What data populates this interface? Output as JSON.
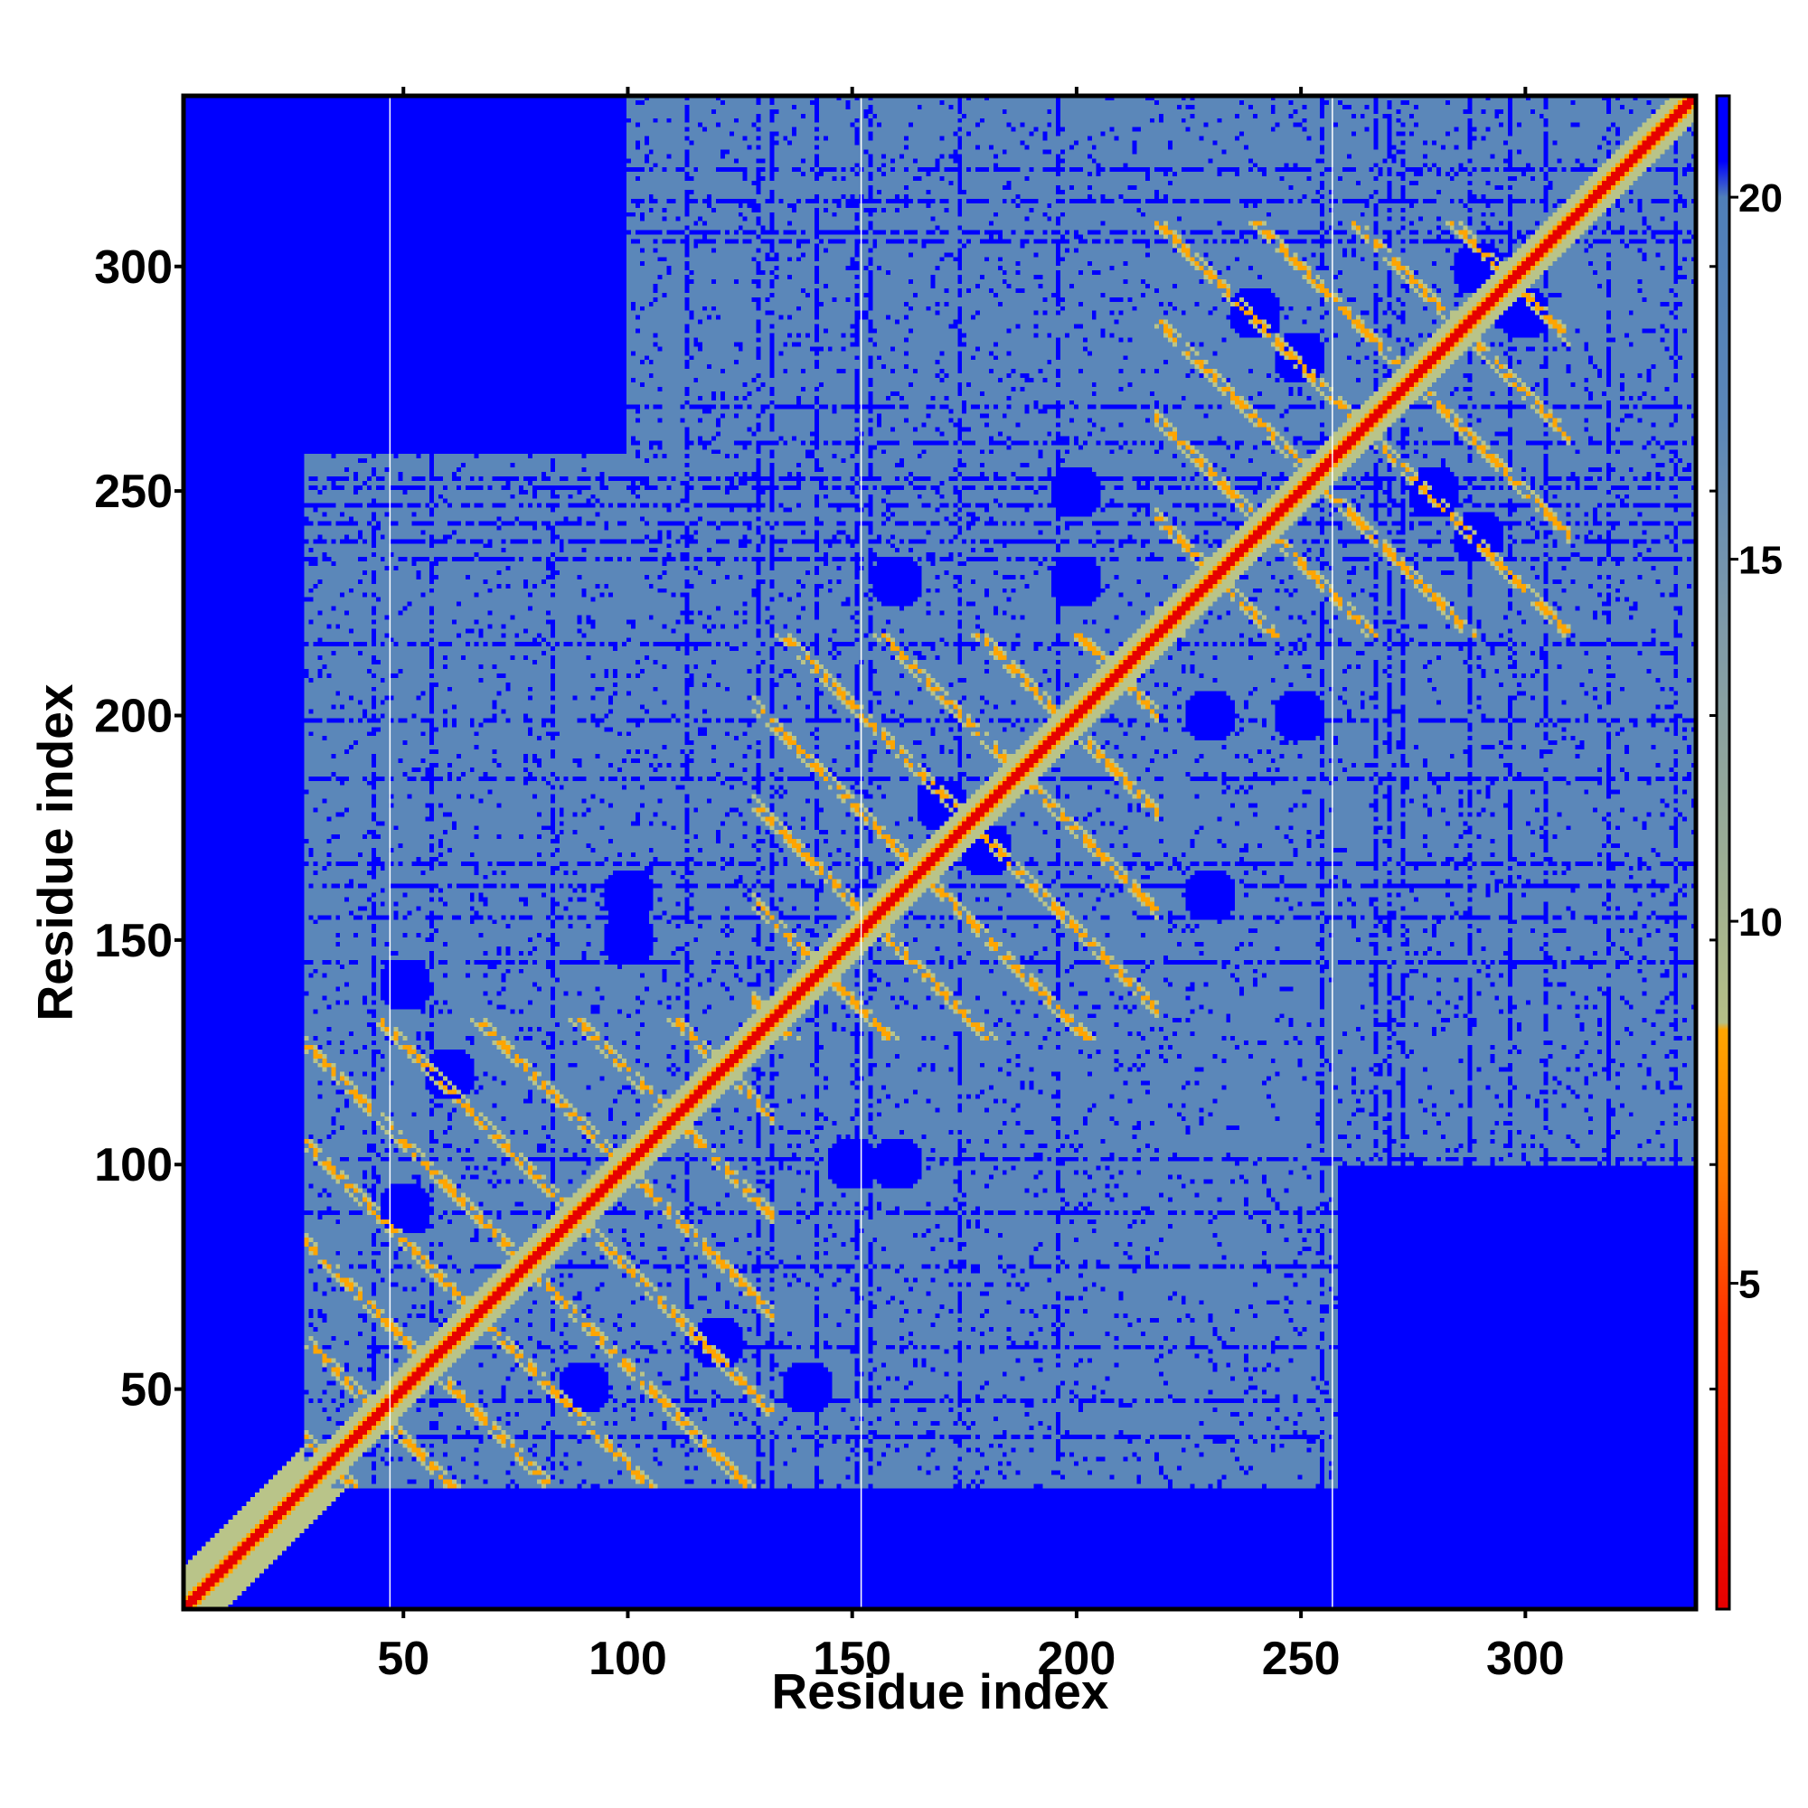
{
  "chart_data": {
    "type": "heatmap",
    "title": "",
    "xlabel": "Residue index",
    "ylabel": "Residue index",
    "n_residues": 338,
    "xlim": [
      1,
      338
    ],
    "ylim": [
      1,
      338
    ],
    "x_ticks": [
      "50",
      "100",
      "150",
      "200",
      "250",
      "300"
    ],
    "y_ticks": [
      "50",
      "100",
      "150",
      "200",
      "250",
      "300"
    ],
    "x_tick_values": [
      50,
      100,
      150,
      200,
      250,
      300
    ],
    "y_tick_values": [
      50,
      100,
      150,
      200,
      250,
      300
    ],
    "domain_boundaries": [
      47,
      152,
      257
    ],
    "colorbar": {
      "ticks": [
        "5",
        "10",
        "15",
        "20"
      ],
      "tick_values": [
        5,
        10,
        15,
        20
      ],
      "range": [
        0.5,
        21.4
      ],
      "stops": [
        {
          "value": 0.5,
          "color": "#e60000"
        },
        {
          "value": 4.5,
          "color": "#ff3300"
        },
        {
          "value": 6.5,
          "color": "#ff7a00"
        },
        {
          "value": 8.5,
          "color": "#ffa500"
        },
        {
          "value": 8.6,
          "color": "#b5bf86"
        },
        {
          "value": 11.0,
          "color": "#9aac95"
        },
        {
          "value": 14.0,
          "color": "#7f9aa8"
        },
        {
          "value": 17.0,
          "color": "#5a86b8"
        },
        {
          "value": 20.0,
          "color": "#4f7fb9"
        },
        {
          "value": 20.5,
          "color": "#0000ff"
        },
        {
          "value": 21.4,
          "color": "#0000ff"
        }
      ]
    },
    "colors": {
      "far": "#0000ff",
      "background_contact": "#5b87b9",
      "near_contact": "#b9c489",
      "close_contact": "#ffa500",
      "diagonal": "#e60000"
    }
  }
}
